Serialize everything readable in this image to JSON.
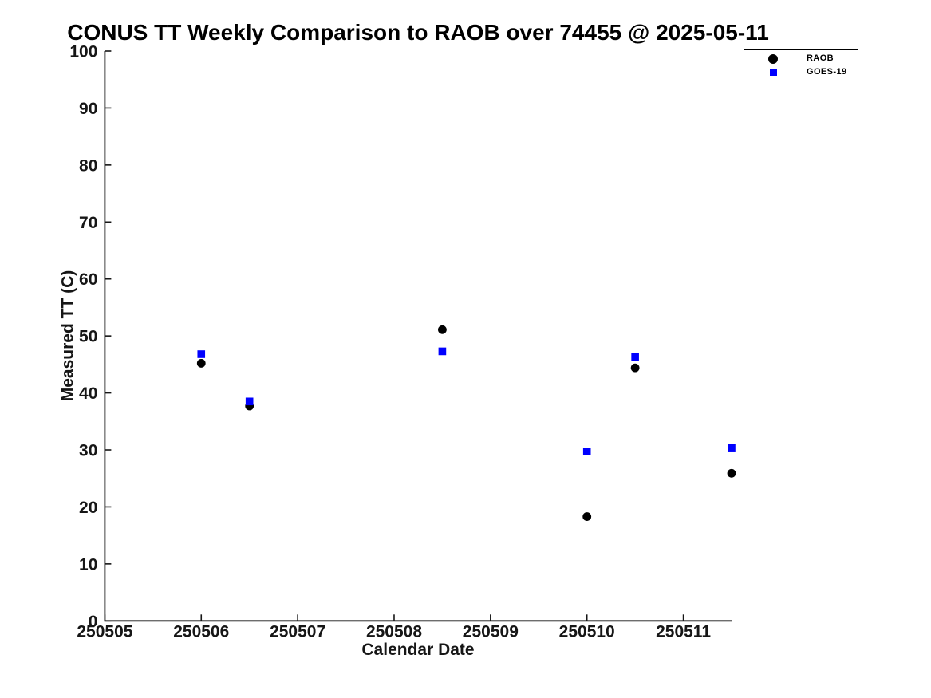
{
  "chart_data": {
    "type": "scatter",
    "title": "CONUS TT Weekly Comparison to RAOB over 74455 @ 2025-05-11",
    "xlabel": "Calendar Date",
    "ylabel": "Measured TT (C)",
    "xlim": [
      250505,
      250511.5
    ],
    "ylim": [
      0,
      100
    ],
    "x_ticks": [
      250505,
      250506,
      250507,
      250508,
      250509,
      250510,
      250511
    ],
    "y_ticks": [
      0,
      10,
      20,
      30,
      40,
      50,
      60,
      70,
      80,
      90,
      100
    ],
    "grid": false,
    "legend_position": "top-right",
    "axis_color": "#161616",
    "background_color": "#ffffff",
    "series": [
      {
        "name": "RAOB",
        "marker": "circle",
        "color": "#000000",
        "x": [
          250506.0,
          250506.5,
          250508.5,
          250510.0,
          250510.5,
          250511.5
        ],
        "y": [
          45.2,
          37.7,
          51.1,
          18.3,
          44.4,
          25.9
        ]
      },
      {
        "name": "GOES-19",
        "marker": "square",
        "color": "#0000ff",
        "x": [
          250506.0,
          250506.5,
          250508.5,
          250510.0,
          250510.5,
          250511.5
        ],
        "y": [
          46.8,
          38.5,
          47.3,
          29.7,
          46.3,
          30.4
        ]
      }
    ]
  }
}
